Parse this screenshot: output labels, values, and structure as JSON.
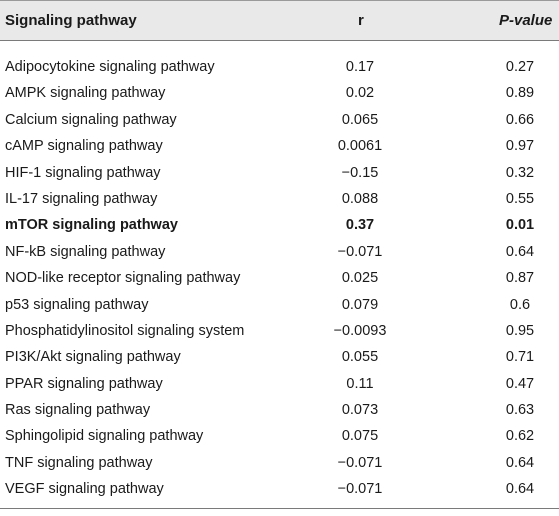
{
  "table": {
    "headers": [
      "Signaling pathway",
      "r",
      "P-value"
    ],
    "rows": [
      {
        "pathway": "Adipocytokine signaling pathway",
        "r": "0.17",
        "p": "0.27",
        "bold": false
      },
      {
        "pathway": "AMPK signaling pathway",
        "r": "0.02",
        "p": "0.89",
        "bold": false
      },
      {
        "pathway": "Calcium signaling pathway",
        "r": "0.065",
        "p": "0.66",
        "bold": false
      },
      {
        "pathway": "cAMP signaling pathway",
        "r": "0.0061",
        "p": "0.97",
        "bold": false
      },
      {
        "pathway": "HIF-1 signaling pathway",
        "r": "−0.15",
        "p": "0.32",
        "bold": false
      },
      {
        "pathway": "IL-17 signaling pathway",
        "r": "0.088",
        "p": "0.55",
        "bold": false
      },
      {
        "pathway": "mTOR signaling pathway",
        "r": "0.37",
        "p": "0.01",
        "bold": true
      },
      {
        "pathway": "NF-kB signaling pathway",
        "r": "−0.071",
        "p": "0.64",
        "bold": false
      },
      {
        "pathway": "NOD-like receptor signaling pathway",
        "r": "0.025",
        "p": "0.87",
        "bold": false
      },
      {
        "pathway": "p53 signaling pathway",
        "r": "0.079",
        "p": "0.6",
        "bold": false
      },
      {
        "pathway": "Phosphatidylinositol signaling system",
        "r": "−0.0093",
        "p": "0.95",
        "bold": false
      },
      {
        "pathway": "PI3K/Akt signaling pathway",
        "r": "0.055",
        "p": "0.71",
        "bold": false
      },
      {
        "pathway": "PPAR signaling pathway",
        "r": "0.11",
        "p": "0.47",
        "bold": false
      },
      {
        "pathway": "Ras signaling pathway",
        "r": "0.073",
        "p": "0.63",
        "bold": false
      },
      {
        "pathway": "Sphingolipid signaling pathway",
        "r": "0.075",
        "p": "0.62",
        "bold": false
      },
      {
        "pathway": "TNF signaling pathway",
        "r": "−0.071",
        "p": "0.64",
        "bold": false
      },
      {
        "pathway": "VEGF signaling pathway",
        "r": "−0.071",
        "p": "0.64",
        "bold": false
      }
    ]
  }
}
